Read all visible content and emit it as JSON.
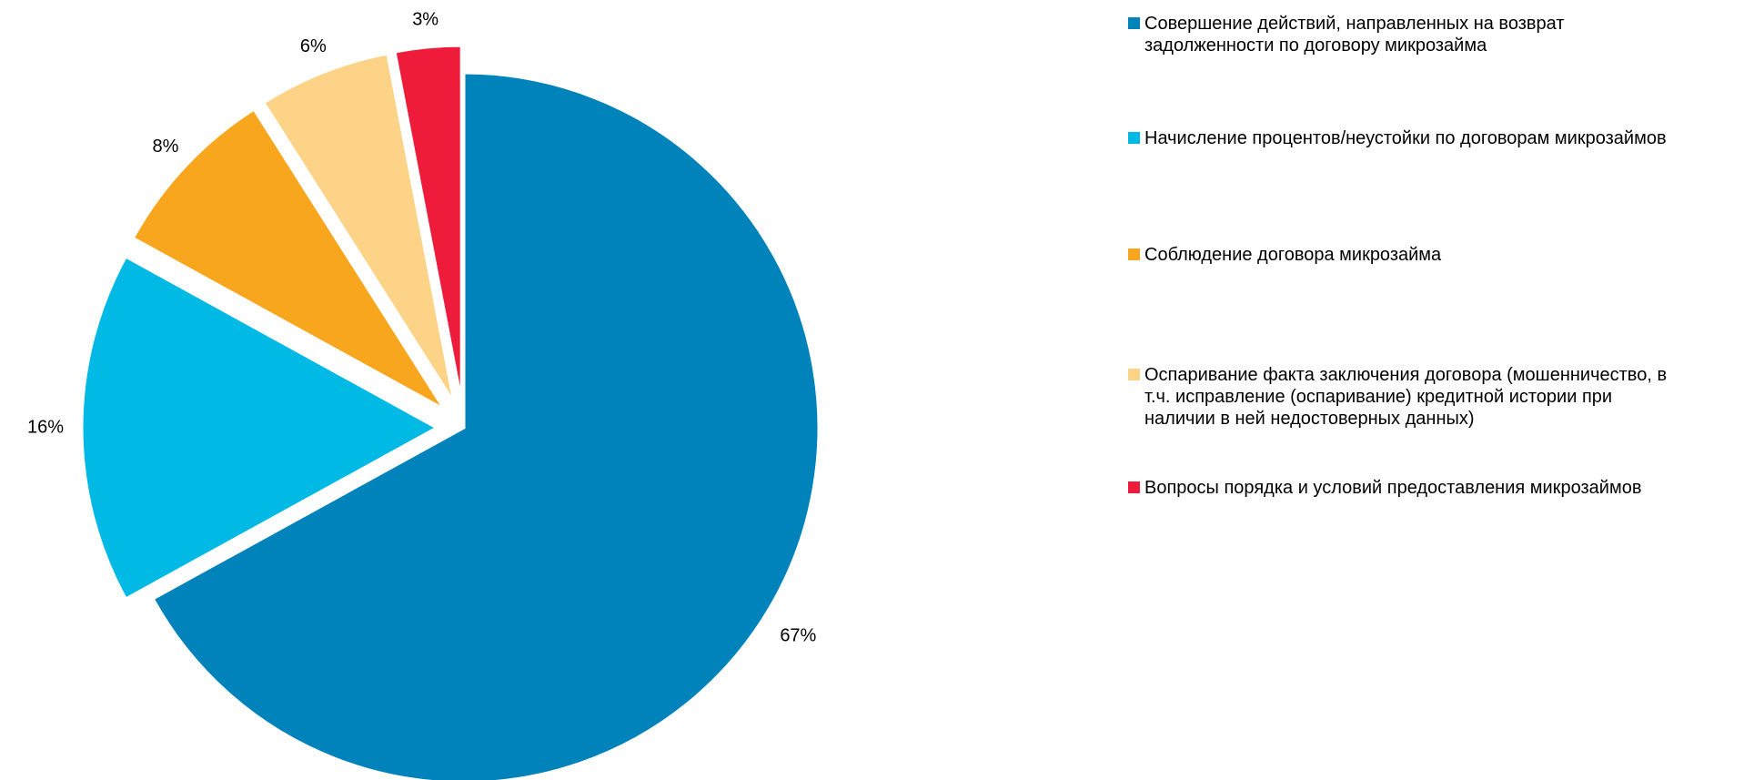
{
  "chart_data": {
    "type": "pie",
    "categories": [
      "Совершение действий, направленных на возврат задолженности по договору микрозайма",
      "Начисление процентов/неустойки по договорам микрозаймов",
      "Соблюдение договора микрозайма",
      "Оспаривание факта заключения договора (мошенничество, в т.ч. исправление (оспаривание) кредитной истории при наличии в ней недостоверных данных)",
      "Вопросы порядка и условий предоставления микрозаймов"
    ],
    "values": [
      67,
      16,
      8,
      6,
      3
    ],
    "value_labels": [
      "67%",
      "16%",
      "8%",
      "6%",
      "3%"
    ],
    "colors": [
      "#0082BA",
      "#00B9E4",
      "#F8A61E",
      "#FDD387",
      "#EE1C3A"
    ],
    "start_angle": "12 o'clock",
    "direction": "clockwise",
    "exploded": true,
    "legend": {
      "position": "right",
      "items": [
        {
          "lines": [
            "Совершение действий, направленных на возврат",
            "задолженности по договору микрозайма"
          ]
        },
        {
          "lines": [
            "Начисление процентов/неустойки по договорам микрозаймов"
          ]
        },
        {
          "lines": [
            "Соблюдение договора микрозайма"
          ]
        },
        {
          "lines": [
            "Оспаривание факта заключения договора (мошенничество, в",
            "т.ч. исправление (оспаривание) кредитной истории при",
            "наличии в ней недостоверных данных)"
          ]
        },
        {
          "lines": [
            "Вопросы порядка и условий предоставления микрозаймов"
          ]
        }
      ]
    }
  }
}
